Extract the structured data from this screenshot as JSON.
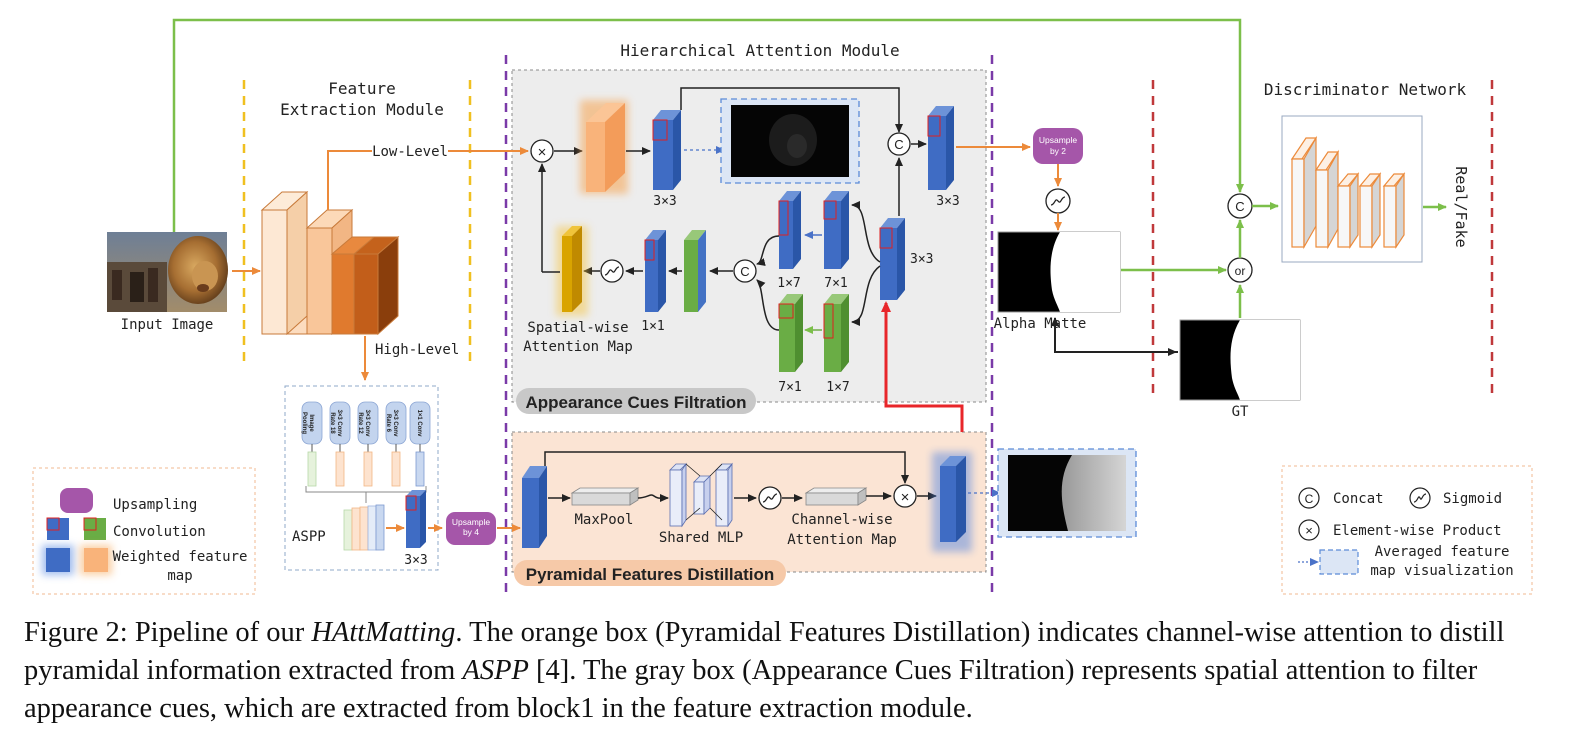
{
  "modules": {
    "feature_extraction": "Feature\nExtraction Module",
    "hierarchical": "Hierarchical Attention Module",
    "discriminator": "Discriminator Network"
  },
  "labels": {
    "input_image": "Input Image",
    "low_level": "Low-Level",
    "high_level": "High-Level",
    "aspp": "ASPP",
    "k3x3": "3×3",
    "k1x1": "1×1",
    "k1x7": "1×7",
    "k7x1": "7×1",
    "spatial_map": "Spatial-wise\nAttention Map",
    "alpha_matte": "Alpha Matte",
    "gt": "GT",
    "real_fake": "Real/Fake",
    "maxpool": "MaxPool",
    "shared_mlp": "Shared MLP",
    "channel_map": "Channel-wise\nAttention Map",
    "upsample_by2": "Upsample\nby 2",
    "upsample_by4": "Upsample\nby 4",
    "concat_symbol": "C",
    "product_symbol": "×",
    "or_symbol": "or",
    "aspp_branches": [
      "Image\nPooling",
      "3×3 Conv\nRate 18",
      "3×3 Conv\nRate 12",
      "3×3 Conv\nRate 6",
      "1×1 Conv"
    ]
  },
  "badges": {
    "appearance": "Appearance Cues Filtration",
    "pyramidal": "Pyramidal Features Distillation"
  },
  "legend_left": {
    "upsampling": "Upsampling",
    "convolution": "Convolution",
    "weighted": "Weighted feature\nmap"
  },
  "legend_right": {
    "concat": "Concat",
    "sigmoid": "Sigmoid",
    "product": "Element-wise Product",
    "averaged": "Averaged feature\nmap visualization"
  },
  "caption": {
    "prefix": "Figure 2: Pipeline of our ",
    "model": "HAttMatting",
    "part1": ". The orange box (Pyramidal Features Distillation) indicates channel-wise attention to distill pyramidal information extracted from ",
    "aspp": "ASPP",
    "part2": " [4]. The gray box (Appearance Cues Filtration) represents spatial attention to filter appearance cues, which are extracted from block1 in the feature extraction module."
  },
  "colors": {
    "green_line": "#7cbf4a",
    "orange_line": "#ec8a3a",
    "red_line": "#e8262a",
    "purple": "#a556a9",
    "blue_block": "#4472c4",
    "green_block": "#70ad47",
    "gold_block": "#d9a400"
  }
}
